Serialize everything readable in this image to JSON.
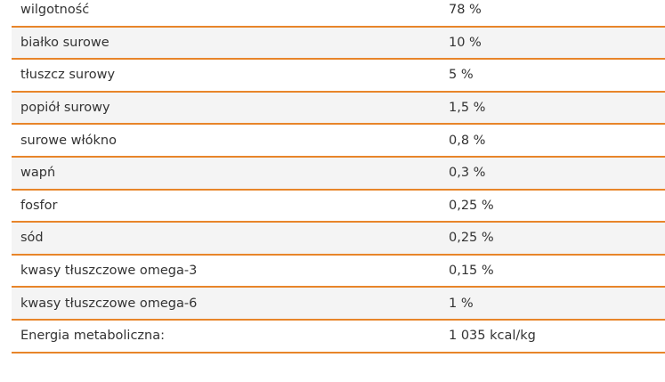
{
  "table": {
    "rows": [
      [
        "wilgotność",
        "78 %"
      ],
      [
        "białko surowe",
        "10 %"
      ],
      [
        "tłuszcz surowy",
        "5 %"
      ],
      [
        "popiół surowy",
        "1,5 %"
      ],
      [
        "surowe włókno",
        "0,8 %"
      ],
      [
        "wapń",
        "0,3 %"
      ],
      [
        "fosfor",
        "0,25 %"
      ],
      [
        "sód",
        "0,25 %"
      ],
      [
        "kwasy tłuszczowe omega-3",
        "0,15 %"
      ],
      [
        "kwasy tłuszczowe omega-6",
        "1 %"
      ],
      [
        "Energia metaboliczna:",
        "1 035 kcal/kg"
      ]
    ]
  }
}
